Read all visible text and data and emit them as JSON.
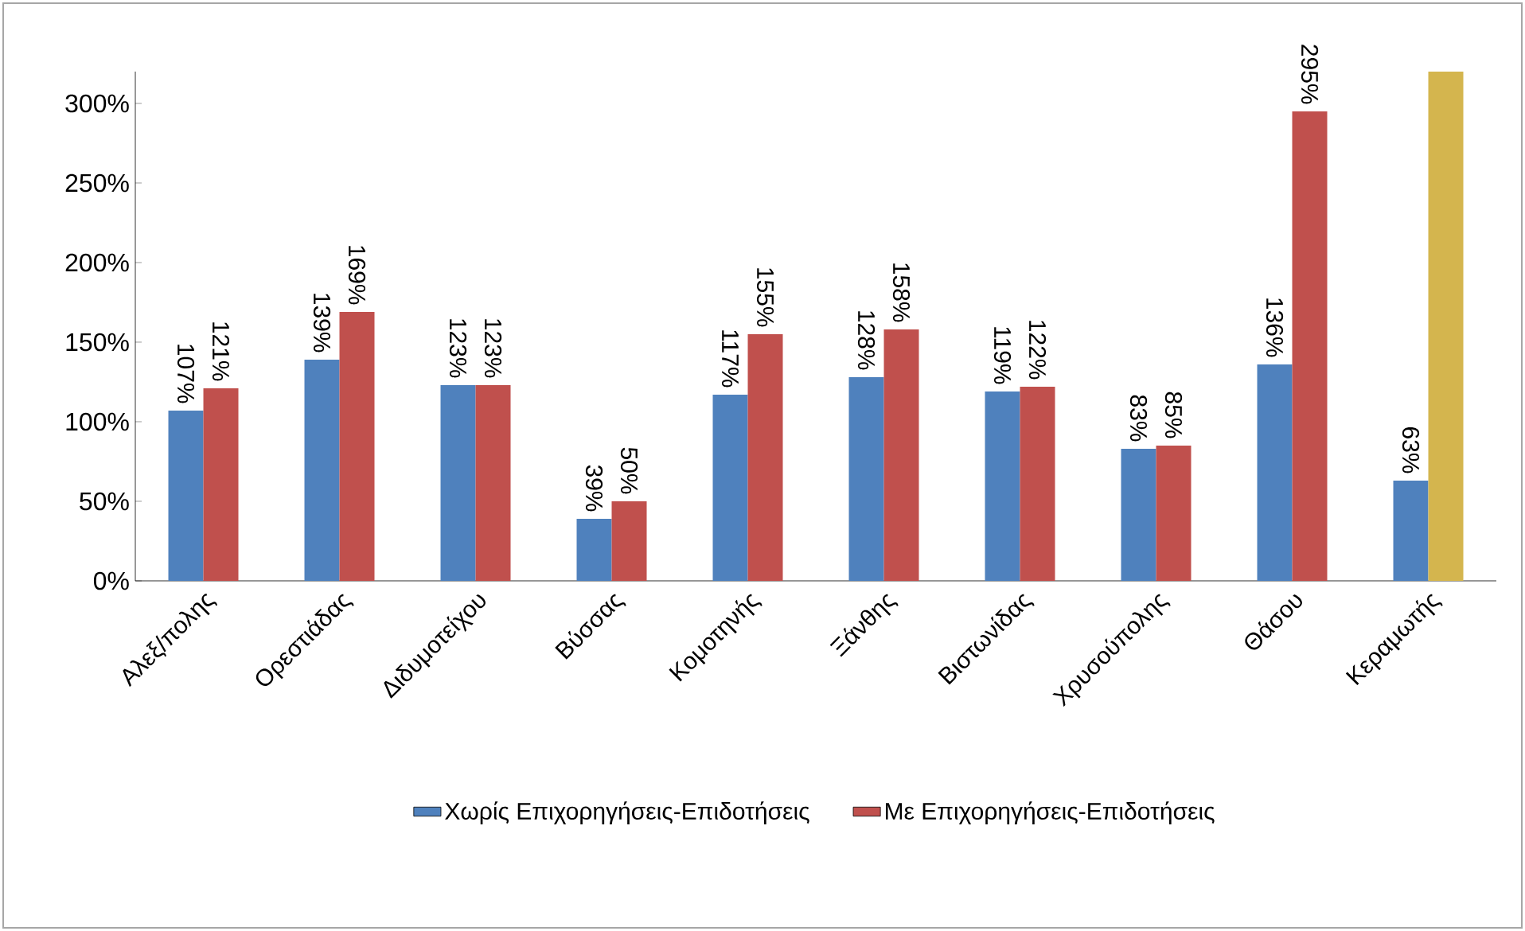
{
  "chart_data": {
    "type": "bar",
    "categories": [
      "Αλεξ/πολης",
      "Ορεστιάδας",
      "Διδυμοτείχου",
      "Βύσσας",
      "Κομοτηνής",
      "Ξάνθης",
      "Βιστωνίδας",
      "Χρυσούπολης",
      "Θάσου",
      "Κεραμωτής"
    ],
    "series": [
      {
        "name": "Χωρίς Επιχορηγήσεις-Επιδοτήσεις",
        "color": "#4f81bd",
        "values": [
          107,
          139,
          123,
          39,
          117,
          128,
          119,
          83,
          136,
          63
        ],
        "value_labels": [
          "107%",
          "139%",
          "123%",
          "39%",
          "117%",
          "128%",
          "119%",
          "83%",
          "136%",
          "63%"
        ]
      },
      {
        "name": "Με Επιχορηγήσεις-Επιδοτήσεις",
        "color": "#c0504d",
        "colors": [
          "#c0504d",
          "#c0504d",
          "#c0504d",
          "#c0504d",
          "#c0504d",
          "#c0504d",
          "#c0504d",
          "#c0504d",
          "#c0504d",
          "#d4b54e"
        ],
        "values": [
          121,
          169,
          123,
          50,
          155,
          158,
          122,
          85,
          295,
          320
        ],
        "value_labels": [
          "121%",
          "169%",
          "123%",
          "50%",
          "155%",
          "158%",
          "122%",
          "85%",
          "295%",
          null
        ]
      }
    ],
    "ylim": [
      0,
      320
    ],
    "yticks": [
      {
        "value": 0,
        "label": "0%"
      },
      {
        "value": 50,
        "label": "50%"
      },
      {
        "value": 100,
        "label": "100%"
      },
      {
        "value": 150,
        "label": "150%"
      },
      {
        "value": 200,
        "label": "200%"
      },
      {
        "value": 250,
        "label": "250%"
      },
      {
        "value": 300,
        "label": "300%"
      }
    ],
    "grid": false,
    "legend": "bottom"
  }
}
